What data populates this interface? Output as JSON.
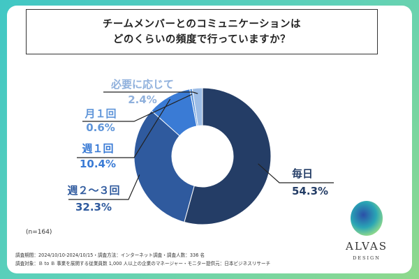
{
  "title_lines": [
    "チームメンバーとのコミュニケーションは",
    "どのくらいの頻度で行っていますか？"
  ],
  "chart_data": {
    "type": "pie",
    "donut": true,
    "n_label": "(n=164)",
    "slices": [
      {
        "label": "毎日",
        "value": "54.3%",
        "pct": 54.3,
        "color": "#243d66",
        "label_color": "#243d66"
      },
      {
        "label": "週２～３回",
        "value": "32.3%",
        "pct": 32.3,
        "color": "#2f5a9e",
        "label_color": "#2f5a9e"
      },
      {
        "label": "週１回",
        "value": "10.4%",
        "pct": 10.4,
        "color": "#3a7bd5",
        "label_color": "#3a7bd5"
      },
      {
        "label": "月１回",
        "value": "0.6%",
        "pct": 0.6,
        "color": "#5f95d9",
        "label_color": "#5f95d9"
      },
      {
        "label": "必要に応じて",
        "value": "2.4%",
        "pct": 2.4,
        "color": "#9dbde6",
        "label_color": "#8fb0dc"
      }
    ]
  },
  "footer": {
    "line1": "調査期間：2024/10/10-2024/10/15・調査方法：インターネット調査・調査人数：336 名",
    "line2": "調査対象：Ｂ to Ｂ 事業を展開する従業員数 1,000 人以上の企業のマネージャー・モニター提供元：日本ビジネスリサーチ"
  },
  "logo": {
    "name": "ALVAS",
    "sub": "DESIGN"
  }
}
